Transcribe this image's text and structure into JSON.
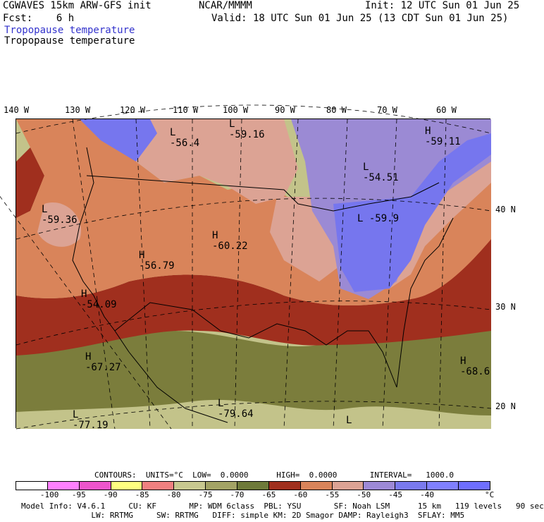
{
  "header": {
    "model": "CGWAVES 15km ARW-GFS init",
    "fcst": "Fcst:    6 h",
    "org": "NCAR/MMMM",
    "init": "Init: 12 UTC Sun 01 Jun 25",
    "valid": "Valid: 18 UTC Sun 01 Jun 25 (13 CDT Sun 01 Jun 25)",
    "field_blue": "Tropopause temperature",
    "field_black": "Tropopause temperature"
  },
  "lon_labels": [
    "140 W",
    "130 W",
    "120 W",
    "110 W",
    "100 W",
    "90 W",
    "80 W",
    "70 W",
    "60 W"
  ],
  "lat_labels": [
    "40 N",
    "30 N",
    "20 N"
  ],
  "map_labels": [
    {
      "type": "L",
      "value": "-56.4"
    },
    {
      "type": "L",
      "value": "-59.16"
    },
    {
      "type": "H",
      "value": "-59.11"
    },
    {
      "type": "L",
      "value": "-54.51"
    },
    {
      "type": "L",
      "value": "-59.36"
    },
    {
      "type": "H",
      "value": "-60.22"
    },
    {
      "type": "H",
      "value": "-56.79"
    },
    {
      "type": "L",
      "value": "-59.9"
    },
    {
      "type": "H",
      "value": "-54.09"
    },
    {
      "type": "H",
      "value": "-67.27"
    },
    {
      "type": "L",
      "value": "-79.64"
    },
    {
      "type": "L",
      "value": "-77.19"
    },
    {
      "type": "H",
      "value": "-68.6"
    },
    {
      "type": "L",
      "value": ""
    }
  ],
  "contours_line": "CONTOURS:  UNITS=°C  LOW=  0.0000      HIGH=  0.0000       INTERVAL=   1000.0",
  "legend": {
    "colors": [
      "#ffffff",
      "#ff80ff",
      "#ee55cc",
      "#ffff80",
      "#f08080",
      "#c8c890",
      "#a3a365",
      "#6e7a3a",
      "#a0301e",
      "#d9845a",
      "#dca394",
      "#9d8ad6",
      "#7a7aee",
      "#8080ff",
      "#6f6fff"
    ],
    "ticks": [
      "-100",
      "-95",
      "-90",
      "-85",
      "-80",
      "-75",
      "-70",
      "-65",
      "-60",
      "-55",
      "-50",
      "-45",
      "-40"
    ],
    "unit": "°C"
  },
  "footer": {
    "line1": "Model Info: V4.6.1     CU: KF       MP: WDM 6class  PBL: YSU       SF: Noah LSM      15 km   119 levels   90 sec",
    "line2": "               LW: RRTMG     SW: RRTMG   DIFF: simple KM: 2D Smagor DAMP: Rayleigh3  SFLAY: MM5"
  },
  "map_colors": {
    "tropics_light": "#c3c38a",
    "tropics_olive": "#7b7d3c",
    "dark_red": "#a02f1e",
    "orange": "#d9845a",
    "pink": "#dca394",
    "lavender": "#9b8ad4",
    "blue": "#7676ee"
  }
}
